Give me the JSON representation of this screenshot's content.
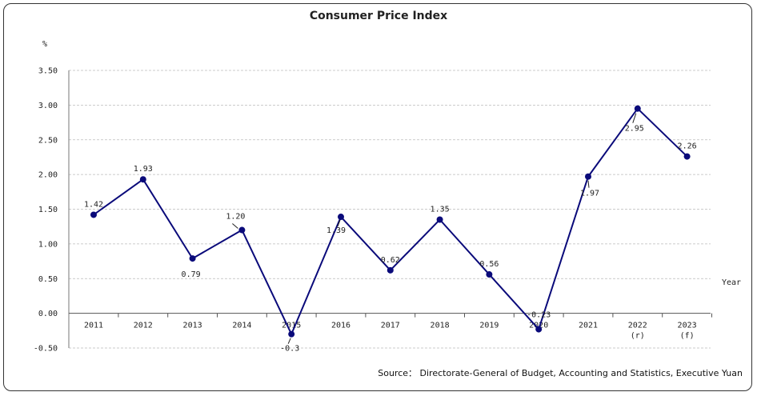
{
  "chart_data": {
    "type": "line",
    "title": "Consumer Price Index",
    "ylabel": "%",
    "xlabel": "Year",
    "source": "Source： Directorate-General of Budget, Accounting and Statistics, Executive Yuan",
    "ylim": [
      -0.5,
      3.5
    ],
    "yticks": [
      "3.50",
      "3.00",
      "2.50",
      "2.00",
      "1.50",
      "1.00",
      "0.50",
      "0.00",
      "-0.50"
    ],
    "grid": true,
    "categories": [
      "2011",
      "2012",
      "2013",
      "2014",
      "2015",
      "2016",
      "2017",
      "2018",
      "2019",
      "2020",
      "2021",
      "2022",
      "2023"
    ],
    "category_notes": [
      "",
      "",
      "",
      "",
      "",
      "",
      "",
      "",
      "",
      "",
      "",
      "(r)",
      "(f)"
    ],
    "values": [
      1.42,
      1.93,
      0.79,
      1.2,
      -0.3,
      1.39,
      0.62,
      1.35,
      0.56,
      -0.23,
      1.97,
      2.95,
      2.26
    ],
    "data_labels": [
      "1.42",
      "1.93",
      "0.79",
      "1.20",
      "-0.3",
      "1.39",
      "0.62",
      "1.35",
      "0.56",
      "-0.23",
      "1.97",
      "2.95",
      "2.26"
    ],
    "colors": {
      "line": "#0a0a7a",
      "marker": "#0a0a7a",
      "negative_tick": "#cc0000",
      "grid": "#bbbbbb"
    }
  }
}
